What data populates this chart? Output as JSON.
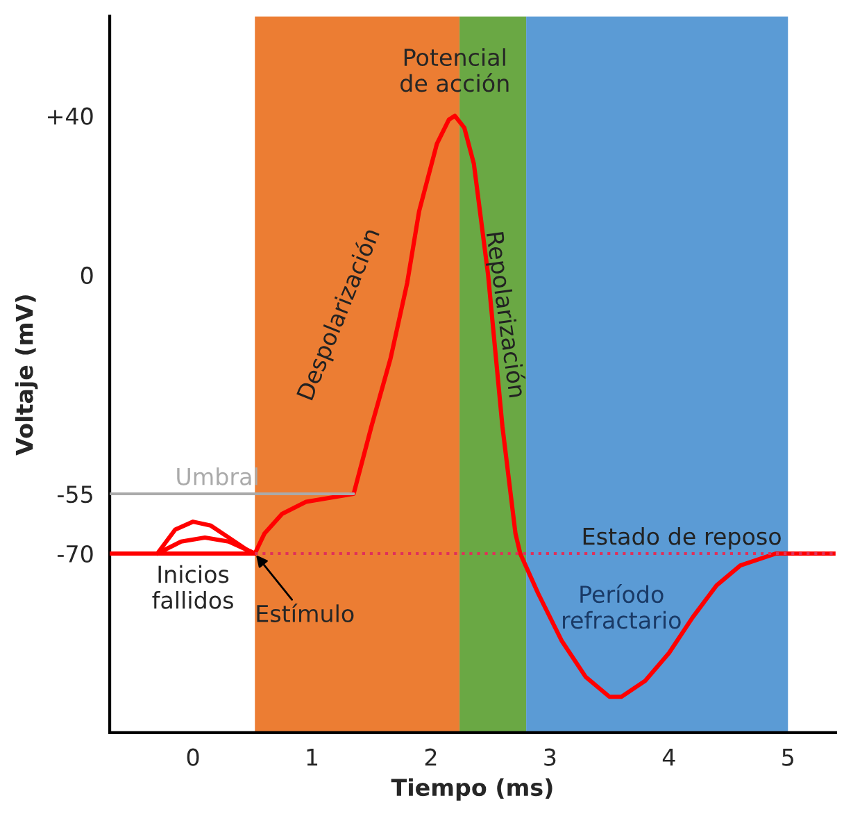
{
  "chart_data": {
    "type": "line",
    "xlabel": "Tiempo (ms)",
    "ylabel": "Voltaje (mV)",
    "xlim": [
      -0.7,
      5.4
    ],
    "xticks": [
      0,
      1,
      2,
      3,
      4,
      5
    ],
    "ylim": [
      -115,
      65
    ],
    "yticks": [
      {
        "value": 40,
        "label": "+40"
      },
      0,
      -55,
      -70
    ],
    "grid": false,
    "legend": false,
    "marker": "none",
    "series": [
      {
        "color": "#ff0000",
        "x": [
          -0.7,
          0.52,
          0.6,
          0.75,
          0.95,
          1.35,
          1.5,
          1.66,
          1.8,
          1.9,
          2.05,
          2.15,
          2.2,
          2.28,
          2.36,
          2.48,
          2.6,
          2.71,
          2.75,
          2.9,
          3.1,
          3.3,
          3.5,
          3.6,
          3.8,
          4.0,
          4.2,
          4.4,
          4.6,
          4.9,
          5.4
        ],
        "values": [
          -70,
          -70,
          -65,
          -60,
          -57,
          -55,
          -38,
          -21,
          -2,
          16,
          33,
          39,
          40,
          37,
          28,
          0,
          -38,
          -65,
          -70,
          -80,
          -92,
          -101,
          -106,
          -106,
          -102,
          -95,
          -86,
          -78,
          -73,
          -70,
          -70
        ]
      },
      {
        "color": "#ff0000",
        "x": [
          -0.3,
          -0.15,
          0,
          0.15,
          0.3,
          0.45,
          0.52
        ],
        "values": [
          -70,
          -64,
          -62,
          -63,
          -66,
          -69,
          -70
        ]
      },
      {
        "color": "#ff0000",
        "x": [
          -0.3,
          -0.1,
          0.1,
          0.3,
          0.52
        ],
        "values": [
          -70,
          -67,
          -66,
          -67,
          -70
        ]
      },
      {
        "name": "Umbral",
        "color": "#aaaaaa",
        "x": [
          -0.7,
          1.35
        ],
        "values": [
          -55,
          -55
        ]
      },
      {
        "name": "Estado de reposo",
        "color": "#e0305a",
        "line_style": "dotted",
        "x": [
          0.52,
          5.4
        ],
        "values": [
          -70,
          -70
        ]
      }
    ],
    "bands": [
      {
        "axis": "x",
        "from": 0.52,
        "to": 2.24,
        "label": "Despolarización",
        "color": "#ec7d33"
      },
      {
        "axis": "x",
        "from": 2.24,
        "to": 2.8,
        "label": "Repolarización",
        "color": "#6aa844"
      },
      {
        "axis": "x",
        "from": 2.8,
        "to": 5.0,
        "label": "Período\nrefractario",
        "color": "#5b9bd5"
      }
    ],
    "annotations": [
      {
        "text": "Potencial\nde acción",
        "x": 2.2,
        "y": 40
      },
      {
        "text": "Inicios\nfallidos",
        "x": 0,
        "y": -70
      },
      {
        "text": "Estímulo",
        "x": 0.52,
        "y": -70
      }
    ]
  }
}
